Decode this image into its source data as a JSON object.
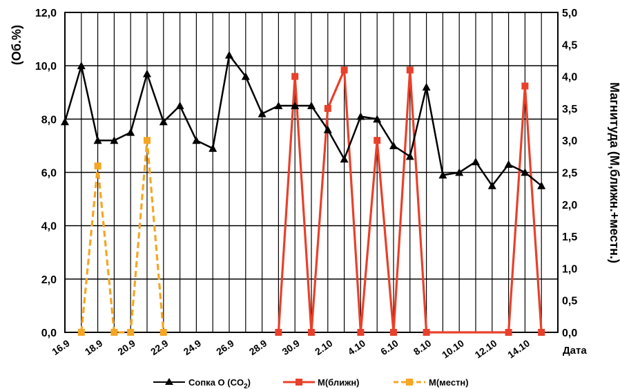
{
  "chart_data": {
    "type": "line",
    "xlabel": "Дата",
    "ylabel_left": "(Об.%)",
    "ylabel_right": "Магнитуда (М,ближн.+местн.)",
    "ylim_left": [
      0,
      12
    ],
    "ylim_right": [
      0,
      5
    ],
    "left_ticks": [
      "0,0",
      "2,0",
      "4,0",
      "6,0",
      "8,0",
      "10,0",
      "12,0"
    ],
    "right_ticks": [
      "0,0",
      "0,5",
      "1,0",
      "1,5",
      "2,0",
      "2,5",
      "3,0",
      "3,5",
      "4,0",
      "4,5",
      "5,0"
    ],
    "x_labels": [
      "16.9",
      "18.9",
      "20.9",
      "22.9",
      "24.9",
      "26.9",
      "28.9",
      "30.9",
      "2.10",
      "4.10",
      "6.10",
      "8.10",
      "10.10",
      "12.10",
      "14.10"
    ],
    "grid": true,
    "legend_position": "bottom",
    "series": [
      {
        "name": "Сопка О (CO",
        "name_sub": "2",
        "name_suffix": ")",
        "axis": "left",
        "color": "#000000",
        "marker": "triangle",
        "dash": false,
        "x": [
          0,
          1,
          2,
          3,
          4,
          5,
          6,
          7,
          8,
          9,
          10,
          11,
          12,
          13,
          14,
          15,
          16,
          17,
          18,
          19,
          20,
          21,
          22,
          23,
          24,
          25,
          26,
          27,
          28,
          29
        ],
        "values": [
          7.9,
          10.0,
          7.2,
          7.2,
          7.5,
          9.7,
          7.9,
          8.5,
          7.2,
          6.9,
          10.4,
          9.6,
          8.2,
          8.5,
          8.5,
          8.5,
          7.6,
          6.5,
          8.1,
          8.0,
          7.0,
          6.6,
          9.2,
          5.9,
          6.0,
          6.4,
          5.5,
          6.3,
          6.0,
          5.5
        ]
      },
      {
        "name": "М(ближн)",
        "axis": "right",
        "color": "#e8402a",
        "marker": "square",
        "dash": false,
        "x": [
          13,
          14,
          15,
          16,
          17,
          18,
          19,
          20,
          21,
          22,
          27,
          28,
          29
        ],
        "values": [
          0,
          4.0,
          0,
          3.5,
          4.1,
          0,
          3.0,
          0,
          4.1,
          0,
          0,
          3.85,
          0
        ]
      },
      {
        "name": "М(местн)",
        "axis": "right",
        "color": "#f5a623",
        "marker": "square",
        "dash": true,
        "x": [
          1,
          2,
          3,
          4,
          5,
          6
        ],
        "values": [
          0,
          2.6,
          0,
          0,
          3.0,
          0
        ]
      }
    ]
  }
}
